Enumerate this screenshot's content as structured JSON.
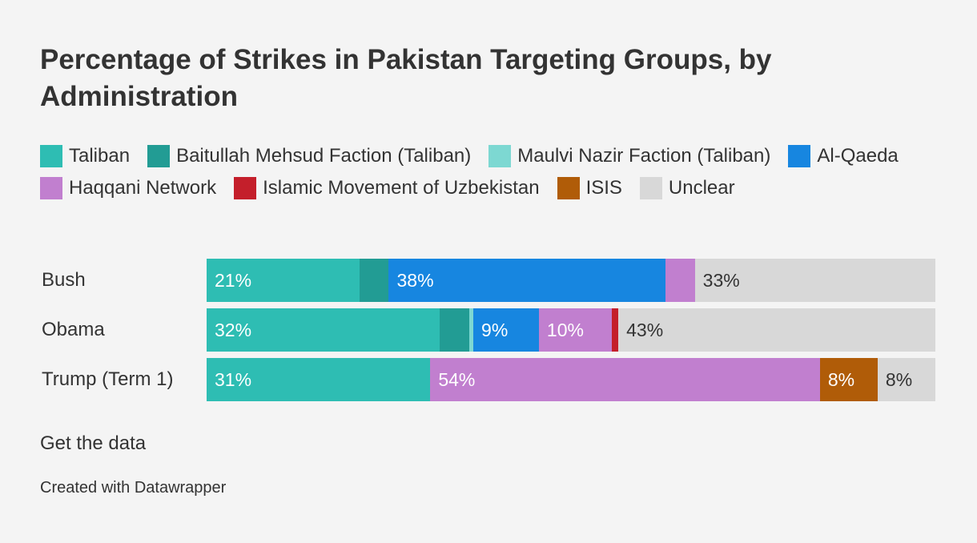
{
  "chart_data": {
    "type": "bar",
    "orientation": "horizontal",
    "stacked": true,
    "title": "Percentage of Strikes in Pakistan Targeting Groups, by Administration",
    "categories": [
      "Bush",
      "Obama",
      "Trump (Term 1)"
    ],
    "xlim": [
      0,
      100
    ],
    "series": [
      {
        "name": "Taliban",
        "color": "#2ebdb3",
        "text_color": "#ffffff",
        "values": [
          21,
          32,
          31
        ],
        "labels": [
          "21%",
          "32%",
          "31%"
        ]
      },
      {
        "name": "Baitullah Mehsud Faction (Taliban)",
        "color": "#229c94",
        "text_color": "#ffffff",
        "values": [
          4,
          4,
          0
        ],
        "labels": [
          "",
          "",
          ""
        ]
      },
      {
        "name": "Maulvi Nazir Faction (Taliban)",
        "color": "#7dd8d2",
        "text_color": "#333333",
        "values": [
          0,
          0.6,
          0
        ],
        "labels": [
          "",
          "",
          ""
        ]
      },
      {
        "name": "Al-Qaeda",
        "color": "#1786e0",
        "text_color": "#ffffff",
        "values": [
          38,
          9,
          0
        ],
        "labels": [
          "38%",
          "9%",
          ""
        ]
      },
      {
        "name": "Haqqani Network",
        "color": "#c17fcf",
        "text_color": "#ffffff",
        "values": [
          4,
          10,
          54
        ],
        "labels": [
          "",
          "10%",
          "54%"
        ]
      },
      {
        "name": "Islamic Movement of Uzbekistan",
        "color": "#c41f2b",
        "text_color": "#ffffff",
        "values": [
          0,
          0.9,
          0
        ],
        "labels": [
          "",
          "",
          ""
        ]
      },
      {
        "name": "ISIS",
        "color": "#b05c08",
        "text_color": "#ffffff",
        "values": [
          0,
          0,
          8
        ],
        "labels": [
          "",
          "",
          "8%"
        ]
      },
      {
        "name": "Unclear",
        "color": "#d8d8d8",
        "text_color": "#333333",
        "values": [
          33,
          43,
          8
        ],
        "labels": [
          "33%",
          "43%",
          "8%"
        ]
      }
    ]
  },
  "footer": {
    "get_data": "Get the data",
    "credit": "Created with Datawrapper"
  }
}
